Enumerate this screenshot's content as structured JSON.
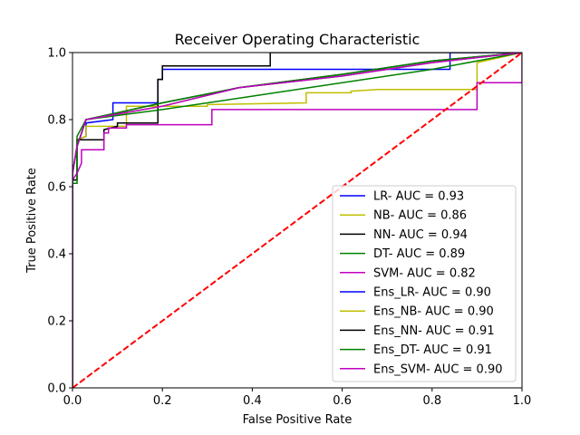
{
  "chart_data": {
    "type": "line",
    "title": "Receiver Operating Characteristic",
    "xlabel": "False Positive Rate",
    "ylabel": "True Positive Rate",
    "xlim": [
      0,
      1
    ],
    "ylim": [
      0,
      1
    ],
    "xticks": [
      "0.0",
      "0.2",
      "0.4",
      "0.6",
      "0.8",
      "1.0"
    ],
    "yticks": [
      "0.0",
      "0.2",
      "0.4",
      "0.6",
      "0.8",
      "1.0"
    ],
    "grid": false,
    "legend_position": "lower-right",
    "series": [
      {
        "name": "LR- AUC = 0.93",
        "color": "#0000ff",
        "points": [
          [
            0,
            0
          ],
          [
            0,
            0.62
          ],
          [
            0.01,
            0.62
          ],
          [
            0.01,
            0.74
          ],
          [
            0.03,
            0.75
          ],
          [
            0.03,
            0.79
          ],
          [
            0.09,
            0.8
          ],
          [
            0.09,
            0.85
          ],
          [
            0.19,
            0.85
          ],
          [
            0.19,
            0.92
          ],
          [
            0.2,
            0.92
          ],
          [
            0.2,
            0.95
          ],
          [
            0.84,
            0.95
          ],
          [
            0.84,
            1.0
          ],
          [
            1,
            1
          ]
        ]
      },
      {
        "name": "NB- AUC = 0.86",
        "color": "#bfbf00",
        "points": [
          [
            0,
            0
          ],
          [
            0,
            0.62
          ],
          [
            0.01,
            0.62
          ],
          [
            0.01,
            0.74
          ],
          [
            0.03,
            0.75
          ],
          [
            0.03,
            0.78
          ],
          [
            0.12,
            0.78
          ],
          [
            0.12,
            0.84
          ],
          [
            0.3,
            0.84
          ],
          [
            0.3,
            0.845
          ],
          [
            0.52,
            0.85
          ],
          [
            0.52,
            0.88
          ],
          [
            0.62,
            0.88
          ],
          [
            0.62,
            0.885
          ],
          [
            0.68,
            0.89
          ],
          [
            0.9,
            0.89
          ],
          [
            0.9,
            0.97
          ],
          [
            1,
            1
          ]
        ]
      },
      {
        "name": "NN- AUC = 0.94",
        "color": "#000000",
        "points": [
          [
            0,
            0
          ],
          [
            0,
            0.62
          ],
          [
            0.01,
            0.62
          ],
          [
            0.01,
            0.74
          ],
          [
            0.07,
            0.74
          ],
          [
            0.07,
            0.77
          ],
          [
            0.1,
            0.78
          ],
          [
            0.1,
            0.79
          ],
          [
            0.19,
            0.79
          ],
          [
            0.19,
            0.92
          ],
          [
            0.2,
            0.92
          ],
          [
            0.2,
            0.96
          ],
          [
            0.44,
            0.96
          ],
          [
            0.44,
            1.0
          ],
          [
            1,
            1
          ]
        ]
      },
      {
        "name": "DT- AUC = 0.89",
        "color": "#008000",
        "points": [
          [
            0,
            0
          ],
          [
            0,
            0.61
          ],
          [
            0.01,
            0.61
          ],
          [
            0.01,
            0.75
          ],
          [
            0.03,
            0.8
          ],
          [
            0.2,
            0.83
          ],
          [
            0.4,
            0.87
          ],
          [
            0.6,
            0.91
          ],
          [
            0.8,
            0.95
          ],
          [
            1,
            1
          ]
        ]
      },
      {
        "name": "SVM- AUC = 0.82",
        "color": "#bf00bf",
        "points": [
          [
            0,
            0
          ],
          [
            0,
            0.62
          ],
          [
            0.01,
            0.64
          ],
          [
            0.02,
            0.67
          ],
          [
            0.02,
            0.71
          ],
          [
            0.07,
            0.71
          ],
          [
            0.07,
            0.76
          ],
          [
            0.08,
            0.76
          ],
          [
            0.08,
            0.775
          ],
          [
            0.12,
            0.775
          ],
          [
            0.12,
            0.785
          ],
          [
            0.31,
            0.785
          ],
          [
            0.31,
            0.83
          ],
          [
            0.9,
            0.83
          ],
          [
            0.9,
            0.91
          ],
          [
            1,
            0.91
          ],
          [
            1,
            1
          ]
        ]
      },
      {
        "name": "Ens_LR- AUC = 0.90",
        "color": "#0000ff",
        "points": [
          [
            0,
            0
          ],
          [
            0,
            0.64
          ],
          [
            0.01,
            0.72
          ],
          [
            0.03,
            0.8
          ],
          [
            0.2,
            0.84
          ],
          [
            0.37,
            0.895
          ],
          [
            0.6,
            0.93
          ],
          [
            0.8,
            0.97
          ],
          [
            1,
            1
          ]
        ]
      },
      {
        "name": "Ens_NB- AUC = 0.90",
        "color": "#bfbf00",
        "points": [
          [
            0,
            0
          ],
          [
            0,
            0.64
          ],
          [
            0.01,
            0.72
          ],
          [
            0.03,
            0.8
          ],
          [
            0.2,
            0.84
          ],
          [
            0.37,
            0.895
          ],
          [
            0.6,
            0.93
          ],
          [
            0.8,
            0.97
          ],
          [
            1,
            1
          ]
        ]
      },
      {
        "name": "Ens_NN- AUC = 0.91",
        "color": "#000000",
        "points": [
          [
            0,
            0
          ],
          [
            0,
            0.64
          ],
          [
            0.01,
            0.72
          ],
          [
            0.03,
            0.8
          ],
          [
            0.2,
            0.85
          ],
          [
            0.37,
            0.895
          ],
          [
            0.6,
            0.935
          ],
          [
            0.8,
            0.975
          ],
          [
            1,
            1
          ]
        ]
      },
      {
        "name": "Ens_DT- AUC = 0.91",
        "color": "#008000",
        "points": [
          [
            0,
            0
          ],
          [
            0,
            0.64
          ],
          [
            0.01,
            0.72
          ],
          [
            0.03,
            0.8
          ],
          [
            0.2,
            0.85
          ],
          [
            0.37,
            0.895
          ],
          [
            0.6,
            0.935
          ],
          [
            0.8,
            0.975
          ],
          [
            1,
            1
          ]
        ]
      },
      {
        "name": "Ens_SVM- AUC = 0.90",
        "color": "#bf00bf",
        "points": [
          [
            0,
            0
          ],
          [
            0,
            0.64
          ],
          [
            0.01,
            0.72
          ],
          [
            0.03,
            0.8
          ],
          [
            0.2,
            0.84
          ],
          [
            0.37,
            0.895
          ],
          [
            0.6,
            0.93
          ],
          [
            0.8,
            0.97
          ],
          [
            1,
            1
          ]
        ]
      }
    ],
    "reference_line": {
      "color": "#ff0000",
      "style": "dashed",
      "points": [
        [
          0,
          0
        ],
        [
          1,
          1
        ]
      ]
    }
  }
}
